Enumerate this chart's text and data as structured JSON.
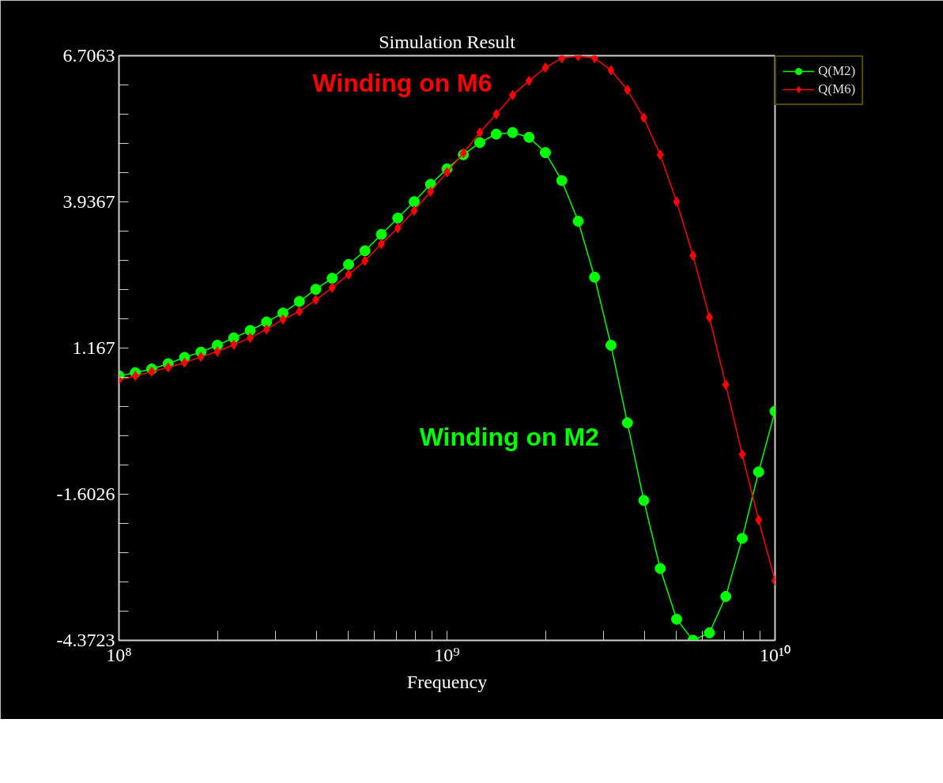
{
  "chart_data": {
    "type": "line",
    "title": "Simulation Result",
    "xlabel": "Frequency",
    "log": "x",
    "xlim": [
      100000000.0,
      10000000000.0
    ],
    "xticks": [
      {
        "value": 100000000.0,
        "label": "10⁸"
      },
      {
        "value": 1000000000.0,
        "label": "10⁹"
      },
      {
        "value": 10000000000.0,
        "label": "10¹⁰"
      }
    ],
    "ylim": [
      -4.3723,
      6.7063
    ],
    "yticks": [
      {
        "value": 6.7063,
        "label": "6.7063"
      },
      {
        "value": 3.9367,
        "label": "3.9367"
      },
      1.167,
      {
        "value": -1.6026,
        "label": "-1.6026"
      },
      {
        "value": -4.3723,
        "label": "-4.3723"
      }
    ],
    "grid": false,
    "legend": "top right",
    "x": [
      100000000.0,
      112200000.0,
      125900000.0,
      141300000.0,
      158500000.0,
      177800000.0,
      199500000.0,
      223900000.0,
      251200000.0,
      281800000.0,
      316200000.0,
      354800000.0,
      398100000.0,
      446700000.0,
      501200000.0,
      562300000.0,
      631000000.0,
      707900000.0,
      794300000.0,
      891300000.0,
      1000000000.0,
      1122000000.0,
      1259000000.0,
      1413000000.0,
      1585000000.0,
      1778000000.0,
      1995000000.0,
      2239000000.0,
      2512000000.0,
      2818000000.0,
      3162000000.0,
      3548000000.0,
      3981000000.0,
      4467000000.0,
      5012000000.0,
      5623000000.0,
      6310000000.0,
      7079000000.0,
      7943000000.0,
      8913000000.0,
      10000000000.0
    ],
    "series": [
      {
        "name": "Q(M2)",
        "color": "#00ff00",
        "marker": "circle",
        "values": [
          0.64,
          0.7,
          0.77,
          0.87,
          0.99,
          1.09,
          1.22,
          1.36,
          1.5,
          1.66,
          1.83,
          2.05,
          2.28,
          2.49,
          2.75,
          3.01,
          3.32,
          3.63,
          3.94,
          4.27,
          4.56,
          4.83,
          5.06,
          5.22,
          5.25,
          5.16,
          4.87,
          4.34,
          3.57,
          2.51,
          1.22,
          -0.25,
          -1.72,
          -3.01,
          -3.97,
          -4.37,
          -4.23,
          -3.54,
          -2.44,
          -1.18,
          -0.03
        ]
      },
      {
        "name": "Q(M6)",
        "color": "#ff0000",
        "marker": "diamond",
        "values": [
          0.56,
          0.64,
          0.72,
          0.8,
          0.89,
          1.0,
          1.1,
          1.23,
          1.36,
          1.52,
          1.71,
          1.86,
          2.08,
          2.31,
          2.56,
          2.82,
          3.14,
          3.44,
          3.77,
          4.13,
          4.5,
          4.86,
          5.25,
          5.6,
          5.96,
          6.23,
          6.48,
          6.66,
          6.7,
          6.66,
          6.43,
          6.06,
          5.53,
          4.83,
          3.94,
          2.92,
          1.75,
          0.47,
          -0.85,
          -2.09,
          -3.24
        ]
      }
    ],
    "annotations": [
      "Winding on M2",
      "Winding on M6"
    ]
  }
}
